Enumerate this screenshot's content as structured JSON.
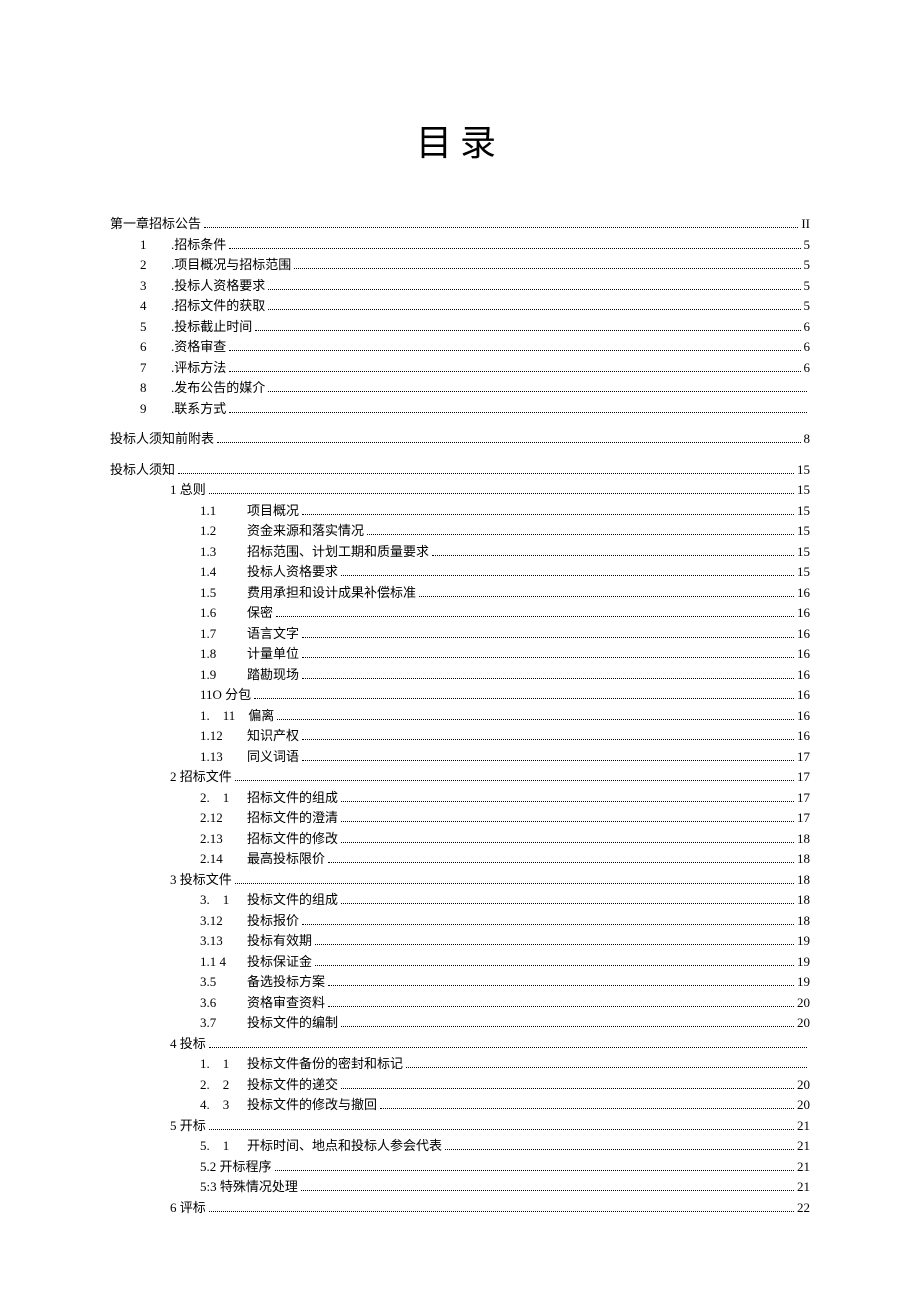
{
  "title": "目录",
  "entries": [
    {
      "indent": 0,
      "num": "",
      "text": "第一章招标公告",
      "page": "II"
    },
    {
      "indent": 1,
      "num": "1",
      "text": ".招标条件",
      "page": "5"
    },
    {
      "indent": 1,
      "num": "2",
      "text": ".项目概况与招标范围",
      "page": "5"
    },
    {
      "indent": 1,
      "num": "3",
      "text": ".投标人资格要求",
      "page": "5"
    },
    {
      "indent": 1,
      "num": "4",
      "text": ".招标文件的获取",
      "page": "5"
    },
    {
      "indent": 1,
      "num": "5",
      "text": ".投标截止时间",
      "page": "6"
    },
    {
      "indent": 1,
      "num": "6",
      "text": ".资格审查",
      "page": "6"
    },
    {
      "indent": 1,
      "num": "7",
      "text": ".评标方法",
      "page": "6"
    },
    {
      "indent": 1,
      "num": "8",
      "text": ".发布公告的媒介",
      "page": ""
    },
    {
      "indent": 1,
      "num": "9",
      "text": ".联系方式",
      "page": ""
    },
    {
      "gap": true
    },
    {
      "indent": 0,
      "num": "",
      "text": "投标人须知前附表",
      "page": "8"
    },
    {
      "gap": true
    },
    {
      "indent": 0,
      "num": "",
      "text": "投标人须知",
      "page": "15"
    },
    {
      "indent": 2,
      "num": "",
      "text": "1 总则",
      "page": "15"
    },
    {
      "indent": 3,
      "num": "1.1",
      "text": "项目概况",
      "page": "15"
    },
    {
      "indent": 3,
      "num": "1.2",
      "text": "资金来源和落实情况",
      "page": "15"
    },
    {
      "indent": 3,
      "num": "1.3",
      "text": "招标范围、计划工期和质量要求",
      "page": "15"
    },
    {
      "indent": 3,
      "num": "1.4",
      "text": "投标人资格要求",
      "page": "15"
    },
    {
      "indent": 3,
      "num": "1.5",
      "text": "费用承担和设计成果补偿标准",
      "page": "16"
    },
    {
      "indent": 3,
      "num": "1.6",
      "text": "保密",
      "page": "16"
    },
    {
      "indent": 3,
      "num": "1.7",
      "text": "语言文字",
      "page": "16"
    },
    {
      "indent": 3,
      "num": "1.8",
      "text": "计量单位",
      "page": "16"
    },
    {
      "indent": 3,
      "num": "1.9",
      "text": "踏勘现场",
      "page": "16"
    },
    {
      "indent": 3,
      "num": "",
      "text": "11O 分包",
      "page": "16"
    },
    {
      "indent": 3,
      "num": "1.　11",
      "text": "偏离",
      "page": "16"
    },
    {
      "indent": 3,
      "num": "1.12",
      "text": "知识产权",
      "page": "16"
    },
    {
      "indent": 3,
      "num": "1.13",
      "text": "同义词语",
      "page": "17"
    },
    {
      "indent": 2,
      "num": "",
      "text": "2 招标文件",
      "page": "17"
    },
    {
      "indent": 3,
      "num": "2.　1",
      "text": "招标文件的组成",
      "page": "17"
    },
    {
      "indent": 3,
      "num": "2.12",
      "text": "招标文件的澄清",
      "page": "17"
    },
    {
      "indent": 3,
      "num": "2.13",
      "text": "招标文件的修改",
      "page": "18"
    },
    {
      "indent": 3,
      "num": "2.14",
      "text": "最高投标限价",
      "page": "18"
    },
    {
      "indent": 2,
      "num": "",
      "text": "3 投标文件",
      "page": "18"
    },
    {
      "indent": 3,
      "num": "3.　1",
      "text": "投标文件的组成",
      "page": "18"
    },
    {
      "indent": 3,
      "num": "3.12",
      "text": "投标报价",
      "page": "18"
    },
    {
      "indent": 3,
      "num": "3.13",
      "text": "投标有效期",
      "page": "19"
    },
    {
      "indent": 3,
      "num": "1.1 4",
      "text": "投标保证金",
      "page": "19"
    },
    {
      "indent": 3,
      "num": "3.5",
      "text": "备选投标方案",
      "page": "19"
    },
    {
      "indent": 3,
      "num": "3.6",
      "text": "资格审查资料",
      "page": "20"
    },
    {
      "indent": 3,
      "num": "3.7",
      "text": "投标文件的编制",
      "page": "20"
    },
    {
      "indent": 2,
      "num": "",
      "text": "4 投标",
      "page": ""
    },
    {
      "indent": 3,
      "num": "1.　1",
      "text": "投标文件备份的密封和标记",
      "page": ""
    },
    {
      "indent": 3,
      "num": "2.　2",
      "text": "投标文件的递交",
      "page": "20"
    },
    {
      "indent": 3,
      "num": "4.　3",
      "text": "投标文件的修改与撤回",
      "page": "20"
    },
    {
      "indent": 2,
      "num": "",
      "text": "5 开标",
      "page": "21"
    },
    {
      "indent": 3,
      "num": "5.　1",
      "text": "开标时间、地点和投标人参会代表",
      "page": "21"
    },
    {
      "indent": 3,
      "num": "",
      "text": "5.2 开标程序",
      "page": "21"
    },
    {
      "indent": 3,
      "num": "",
      "text": "5:3 特殊情况处理",
      "page": "21"
    },
    {
      "indent": 2,
      "num": "",
      "text": "6 评标",
      "page": "22"
    }
  ]
}
